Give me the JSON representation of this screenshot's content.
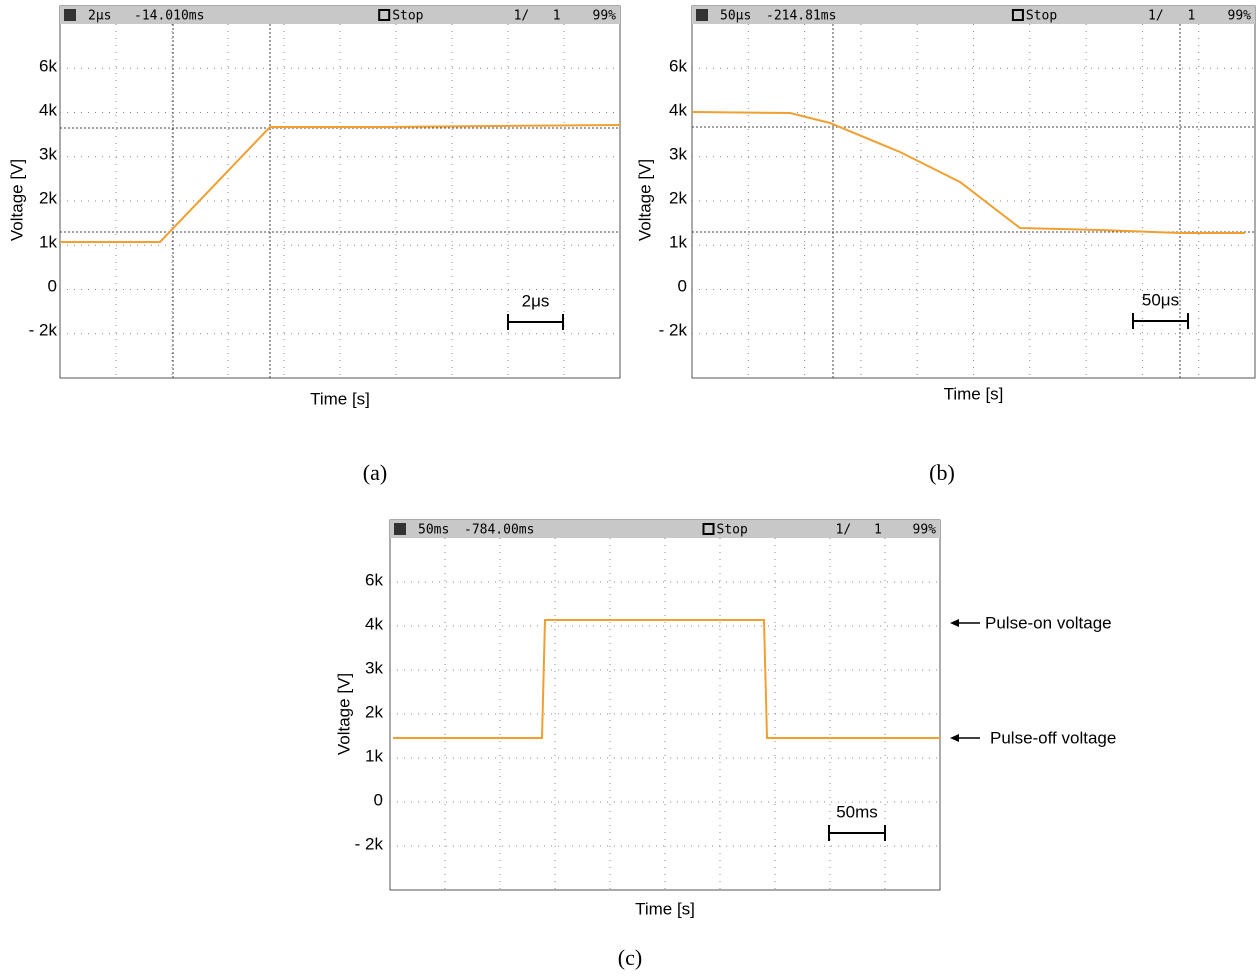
{
  "panels": [
    {
      "header": {
        "timebase": "2µs",
        "position": "-14.010ms",
        "mode": "Stop",
        "count": "1/",
        "total": "1",
        "percent": "99%"
      },
      "y_labels": [
        "6k",
        "4k",
        "3k",
        "2k",
        "1k",
        "0",
        "- 2k"
      ],
      "y_axis_label": "Voltage [V]",
      "x_axis_label": "Time [s]",
      "scale_bar": "2μs",
      "caption": "(a)"
    },
    {
      "header": {
        "timebase": "50µs",
        "position": "-214.81ms",
        "mode": "Stop",
        "count": "1/",
        "total": "1",
        "percent": "99%"
      },
      "y_labels": [
        "6k",
        "4k",
        "3k",
        "2k",
        "1k",
        "0",
        "- 2k"
      ],
      "y_axis_label": "Voltage [V]",
      "x_axis_label": "Time [s]",
      "scale_bar": "50μs",
      "caption": "(b)"
    },
    {
      "header": {
        "timebase": "50ms",
        "position": "-784.00ms",
        "mode": "Stop",
        "count": "1/",
        "total": "1",
        "percent": "99%"
      },
      "y_labels": [
        "6k",
        "4k",
        "3k",
        "2k",
        "1k",
        "0",
        "- 2k"
      ],
      "y_axis_label": "Voltage [V]",
      "x_axis_label": "Time [s]",
      "scale_bar": "50ms",
      "caption": "(c)",
      "annotations": [
        "Pulse-on voltage",
        "Pulse-off voltage"
      ]
    }
  ]
}
